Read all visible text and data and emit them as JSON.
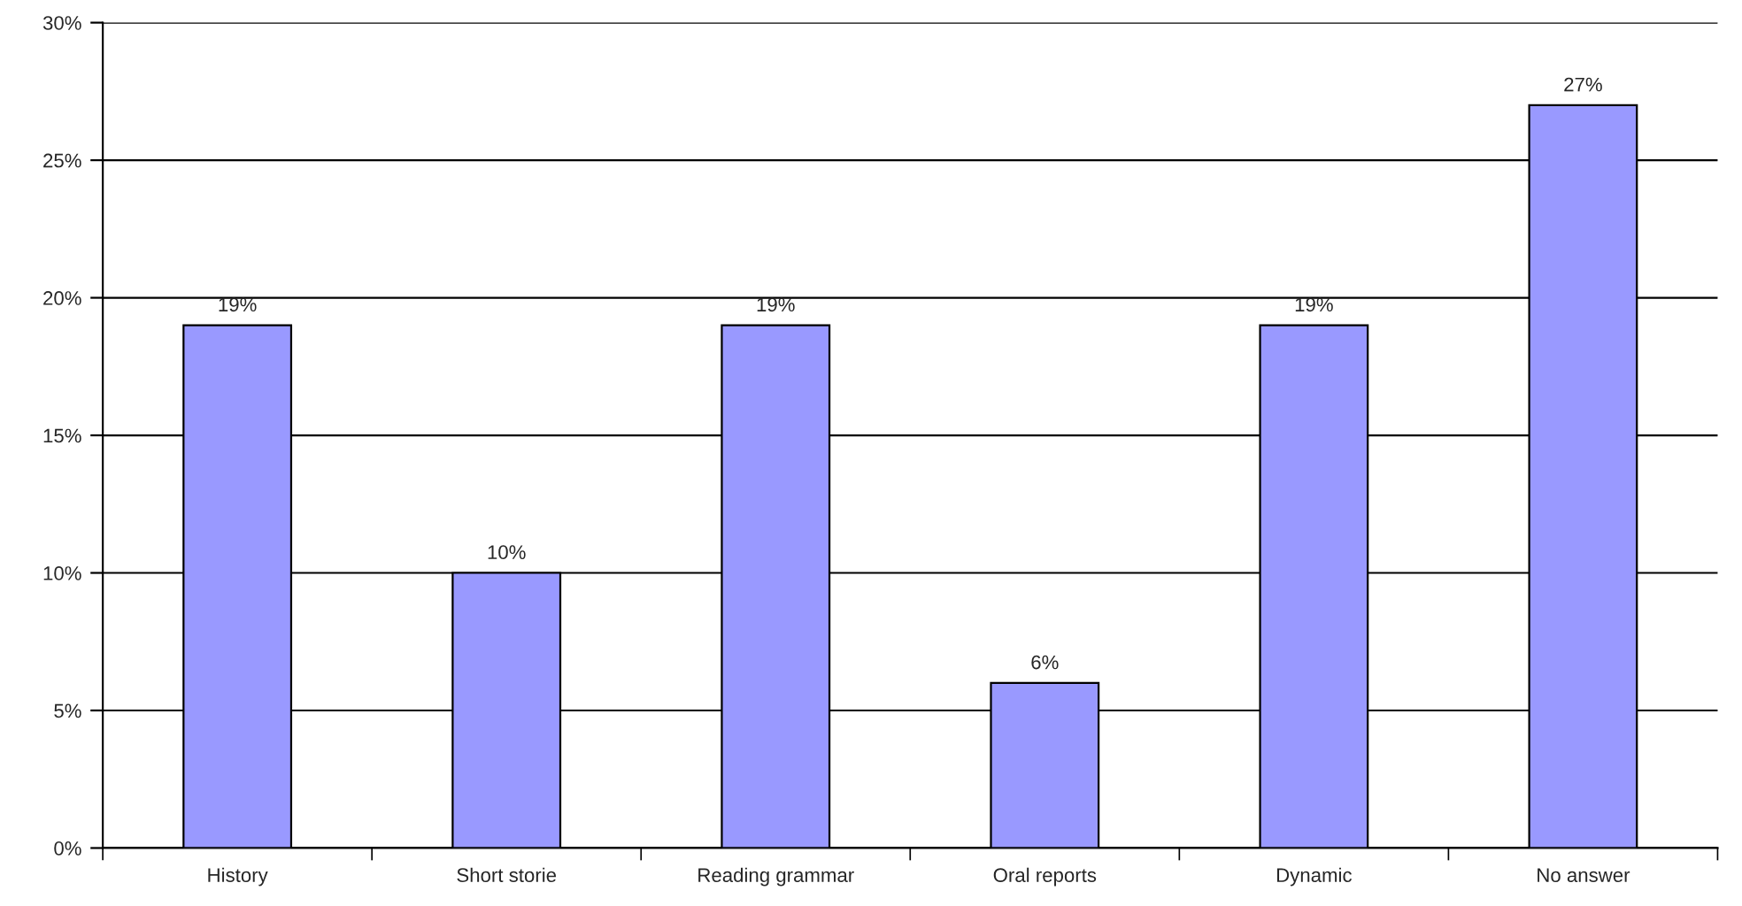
{
  "chart_data": {
    "type": "bar",
    "categories": [
      "History",
      "Short storie",
      "Reading grammar",
      "Oral reports",
      "Dynamic",
      "No answer"
    ],
    "values": [
      19,
      10,
      19,
      6,
      19,
      27
    ],
    "value_labels": [
      "19%",
      "10%",
      "19%",
      "6%",
      "19%",
      "27%"
    ],
    "color": "#9999ff",
    "ylim": [
      0,
      30
    ],
    "yticks": [
      {
        "value": 0,
        "label": "0%"
      },
      {
        "value": 5,
        "label": "5%"
      },
      {
        "value": 10,
        "label": "10%"
      },
      {
        "value": 15,
        "label": "15%"
      },
      {
        "value": 20,
        "label": "20%"
      },
      {
        "value": 25,
        "label": "25%"
      },
      {
        "value": 30,
        "label": "30%"
      }
    ],
    "grid": "y",
    "legend": false
  }
}
